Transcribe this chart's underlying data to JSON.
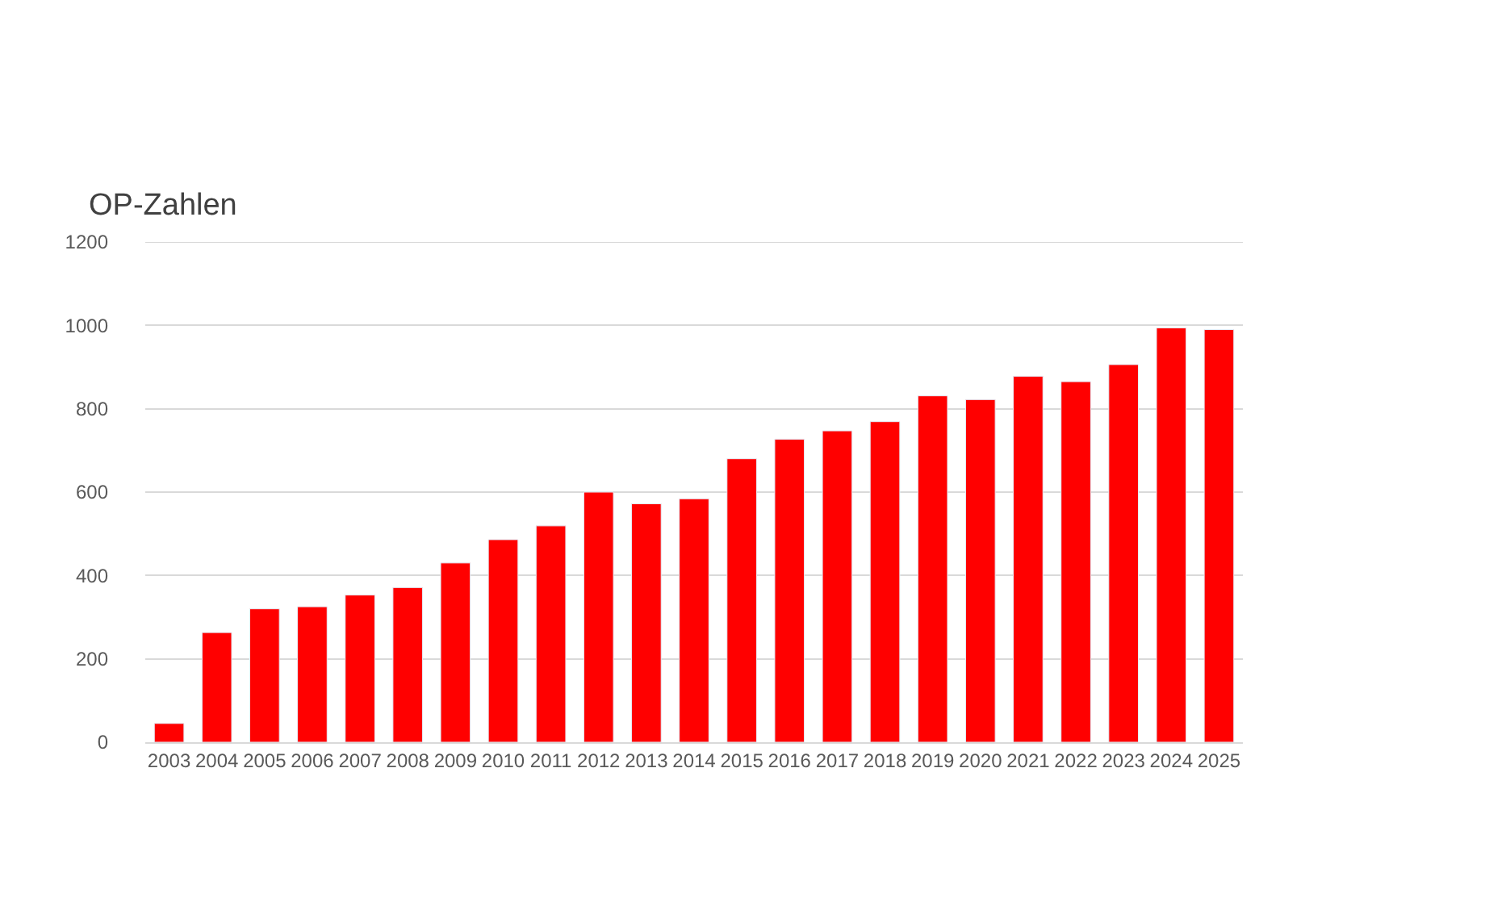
{
  "chart_data": {
    "type": "bar",
    "title": "OP-Zahlen",
    "categories": [
      "2003",
      "2004",
      "2005",
      "2006",
      "2007",
      "2008",
      "2009",
      "2010",
      "2011",
      "2012",
      "2013",
      "2014",
      "2015",
      "2016",
      "2017",
      "2018",
      "2019",
      "2020",
      "2021",
      "2022",
      "2023",
      "2024",
      "2025"
    ],
    "values": [
      45,
      263,
      320,
      325,
      353,
      371,
      430,
      486,
      519,
      600,
      572,
      584,
      680,
      727,
      747,
      769,
      831,
      822,
      878,
      865,
      906,
      994,
      990
    ],
    "color": "#ff0000",
    "ylim": [
      0,
      1200
    ],
    "yticks": [
      0,
      200,
      400,
      600,
      800,
      1000,
      1200
    ],
    "grid": "y"
  }
}
